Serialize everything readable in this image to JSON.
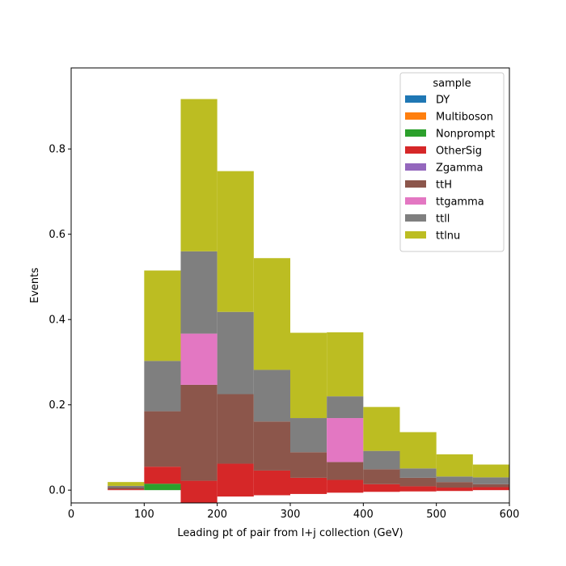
{
  "chart_data": {
    "type": "bar",
    "stacked": true,
    "histogram": true,
    "xlabel": "Leading pt of pair from l+j collection (GeV)",
    "ylabel": "Events",
    "xlim": [
      0,
      600
    ],
    "ylim": [
      -0.03,
      0.99
    ],
    "xticks": [
      0,
      100,
      200,
      300,
      400,
      500,
      600
    ],
    "yticks": [
      0.0,
      0.2,
      0.4,
      0.6,
      0.8
    ],
    "ytick_labels": [
      "0.0",
      "0.2",
      "0.4",
      "0.6",
      "0.8"
    ],
    "bin_edges": [
      50,
      100,
      150,
      200,
      250,
      300,
      350,
      400,
      450,
      500,
      550,
      600
    ],
    "legend": {
      "title": "sample",
      "placement": "top-right"
    },
    "series": [
      {
        "name": "DY",
        "color": "#1f77b4",
        "values": [
          0,
          0,
          0,
          0,
          0,
          0,
          0,
          0,
          0,
          0,
          0
        ]
      },
      {
        "name": "Multiboson",
        "color": "#ff7f0e",
        "values": [
          0,
          0,
          0,
          0,
          0,
          0,
          0,
          0,
          0,
          0,
          0
        ]
      },
      {
        "name": "Nonprompt",
        "color": "#2ca02c",
        "values": [
          0,
          0.015,
          0,
          0,
          0,
          0,
          0,
          0,
          0,
          0,
          0
        ]
      },
      {
        "name": "OtherSig",
        "color": "#d62728",
        "values": [
          0.002,
          0.04,
          0.052,
          0.077,
          0.058,
          0.038,
          0.03,
          0.018,
          0.012,
          0.008,
          0.007
        ]
      },
      {
        "name": "Zgamma",
        "color": "#9467bd",
        "values": [
          0,
          0,
          0,
          0,
          0,
          0,
          0,
          0,
          0,
          0,
          0
        ]
      },
      {
        "name": "ttH",
        "color": "#8c564b",
        "values": [
          0.004,
          0.13,
          0.225,
          0.163,
          0.115,
          0.06,
          0.042,
          0.035,
          0.02,
          0.013,
          0.007
        ]
      },
      {
        "name": "ttgamma",
        "color": "#e377c2",
        "values": [
          0,
          0,
          0.12,
          0,
          0,
          0,
          0.103,
          0,
          0,
          0,
          0
        ]
      },
      {
        "name": "ttll",
        "color": "#7f7f7f",
        "values": [
          0.004,
          0.118,
          0.193,
          0.193,
          0.121,
          0.08,
          0.051,
          0.043,
          0.022,
          0.013,
          0.016
        ]
      },
      {
        "name": "ttlnu",
        "color": "#bcbd22",
        "values": [
          0.009,
          0.212,
          0.357,
          0.33,
          0.262,
          0.2,
          0.15,
          0.103,
          0.085,
          0.052,
          0.03
        ]
      }
    ],
    "negative_offsets": [
      0,
      0,
      -0.03,
      -0.015,
      -0.012,
      -0.009,
      -0.006,
      -0.004,
      -0.003,
      -0.002,
      0
    ]
  }
}
